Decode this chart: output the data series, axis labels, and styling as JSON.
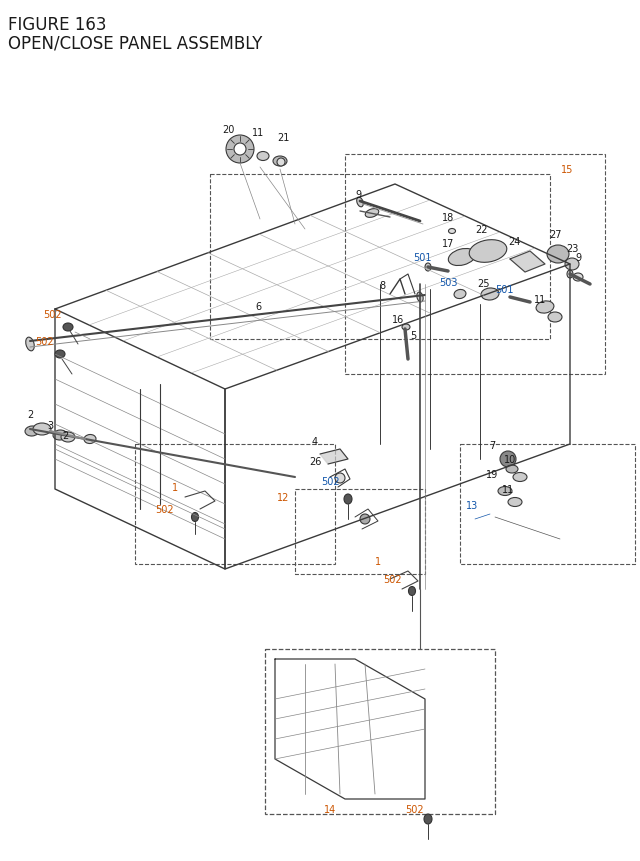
{
  "title_line1": "FIGURE 163",
  "title_line2": "OPEN/CLOSE PANEL ASSEMBLY",
  "title_color": "#1a1a2e",
  "title_fontsize": 11.5,
  "bg_color": "#ffffff",
  "fig_width": 6.4,
  "fig_height": 8.62,
  "lbl_black": "#1a1a1a",
  "lbl_orange": "#cc5500",
  "lbl_blue": "#1155aa",
  "line_color": "#3a3a3a",
  "dash_color": "#555555"
}
